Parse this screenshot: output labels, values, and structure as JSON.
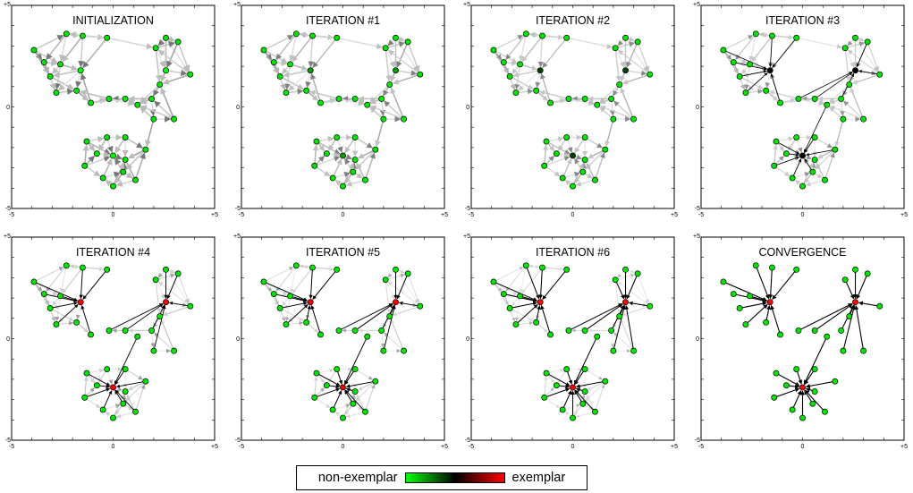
{
  "panels": [
    {
      "title": "INITIALIZATION",
      "stage": 0
    },
    {
      "title": "ITERATION #1",
      "stage": 1
    },
    {
      "title": "ITERATION #2",
      "stage": 2
    },
    {
      "title": "ITERATION #3",
      "stage": 3
    },
    {
      "title": "ITERATION #4",
      "stage": 4
    },
    {
      "title": "ITERATION #5",
      "stage": 5
    },
    {
      "title": "ITERATION #6",
      "stage": 6
    },
    {
      "title": "CONVERGENCE",
      "stage": 7
    }
  ],
  "axis_ticks": {
    "min_label": "-5",
    "mid_label": "0",
    "max_label": "+5"
  },
  "colors": {
    "non_exemplar": "#00ff00",
    "mid": "#000000",
    "exemplar": "#ff0000"
  },
  "legend": {
    "left_label": "non-exemplar",
    "right_label": "exemplar"
  },
  "graph": {
    "points": [
      [
        -3.9,
        2.8
      ],
      [
        -3.4,
        2.2
      ],
      [
        -2.6,
        2.1
      ],
      [
        -2.3,
        3.6
      ],
      [
        -3.1,
        1.5
      ],
      [
        -1.6,
        1.8
      ],
      [
        -2.8,
        0.7
      ],
      [
        -1.8,
        0.8
      ],
      [
        -1.1,
        0.2
      ],
      [
        -1.5,
        3.5
      ],
      [
        -0.3,
        3.4
      ],
      [
        2.6,
        3.4
      ],
      [
        2.1,
        2.9
      ],
      [
        3.2,
        3.2
      ],
      [
        2.6,
        1.8
      ],
      [
        3.8,
        1.6
      ],
      [
        2.3,
        1.1
      ],
      [
        1.9,
        0.4
      ],
      [
        0.6,
        0.4
      ],
      [
        -0.2,
        0.4
      ],
      [
        2.0,
        -0.6
      ],
      [
        3.0,
        -0.6
      ],
      [
        1.2,
        0.1
      ],
      [
        -1.4,
        -2.9
      ],
      [
        -1.3,
        -1.7
      ],
      [
        -0.3,
        -1.5
      ],
      [
        0.6,
        -1.5
      ],
      [
        1.6,
        -2.1
      ],
      [
        0.5,
        -3.2
      ],
      [
        1.1,
        -3.6
      ],
      [
        0.0,
        -3.9
      ],
      [
        -0.5,
        -3.5
      ],
      [
        -0.8,
        -2.3
      ],
      [
        0.0,
        -2.4
      ],
      [
        0.6,
        -2.6
      ]
    ],
    "exemplar_of": [
      5,
      5,
      5,
      5,
      5,
      5,
      5,
      5,
      5,
      5,
      5,
      14,
      14,
      14,
      14,
      14,
      14,
      14,
      14,
      14,
      14,
      14,
      33,
      33,
      33,
      33,
      33,
      33,
      33,
      33,
      33,
      33,
      33,
      33,
      33
    ],
    "exemplars": [
      5,
      14,
      33
    ]
  }
}
